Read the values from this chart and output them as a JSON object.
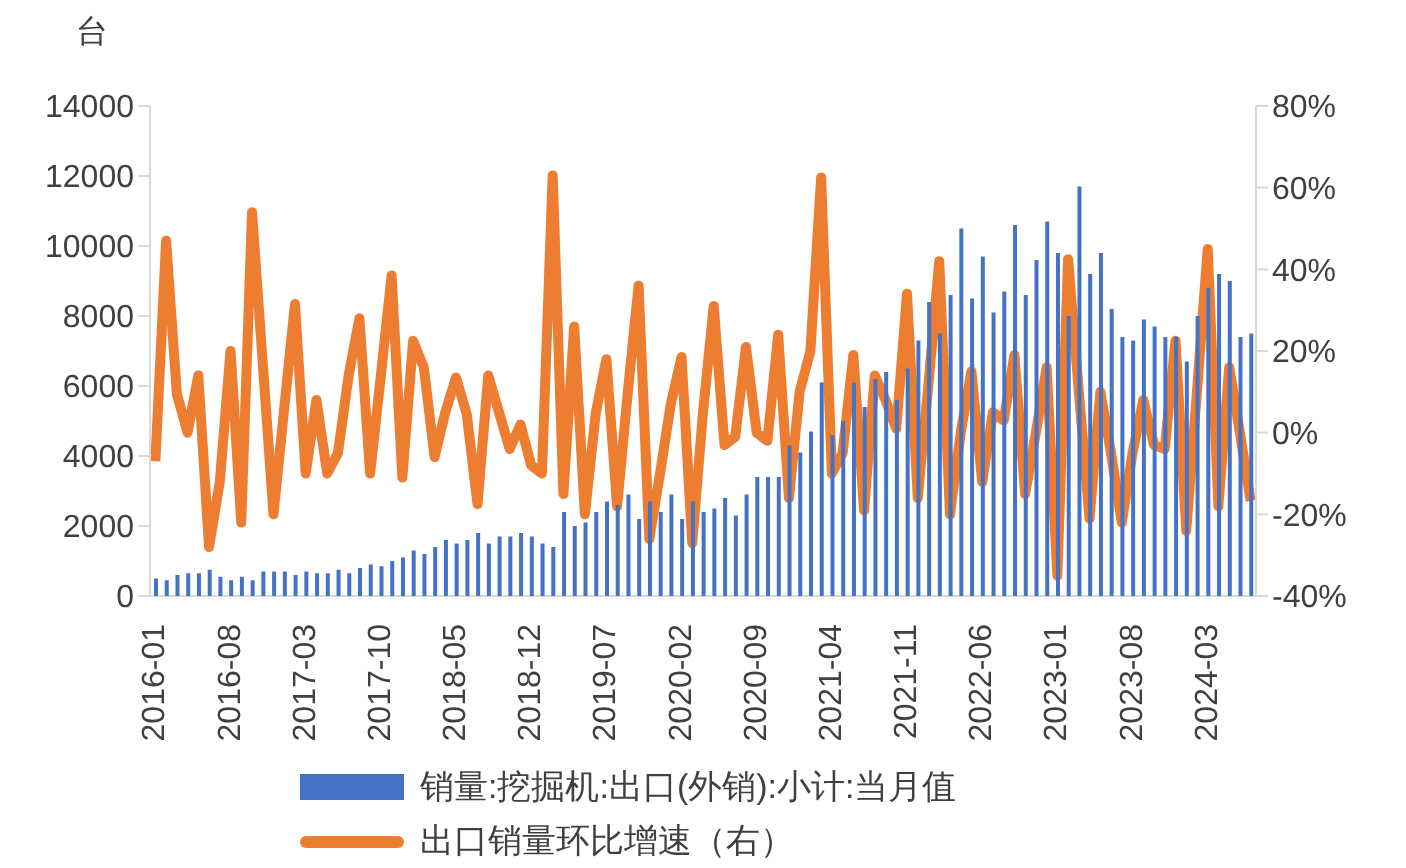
{
  "chart_data": {
    "type": "bar",
    "ylabel": "台",
    "legend": "bottom",
    "grid": false,
    "categories": [
      "2016-01",
      null,
      null,
      null,
      null,
      null,
      null,
      "2016-08",
      null,
      null,
      null,
      null,
      null,
      null,
      "2017-03",
      null,
      null,
      null,
      null,
      null,
      null,
      "2017-10",
      null,
      null,
      null,
      null,
      null,
      null,
      "2018-05",
      null,
      null,
      null,
      null,
      null,
      null,
      "2018-12",
      null,
      null,
      null,
      null,
      null,
      null,
      "2019-07",
      null,
      null,
      null,
      null,
      null,
      null,
      "2020-02",
      null,
      null,
      null,
      null,
      null,
      null,
      "2020-09",
      null,
      null,
      null,
      null,
      null,
      null,
      "2021-04",
      null,
      null,
      null,
      null,
      null,
      null,
      "2021-11",
      null,
      null,
      null,
      null,
      null,
      null,
      "2022-06",
      null,
      null,
      null,
      null,
      null,
      null,
      "2023-01",
      null,
      null,
      null,
      null,
      null,
      null,
      "2023-08",
      null,
      null,
      null,
      null,
      null,
      null,
      "2024-03",
      null,
      null,
      null,
      null
    ],
    "ylim": [
      0,
      14000
    ],
    "yticks": [
      0,
      2000,
      4000,
      6000,
      8000,
      10000,
      12000,
      14000
    ],
    "y2lim": [
      -40,
      80
    ],
    "y2ticks": [
      {
        "value": -40,
        "label": "-40%"
      },
      {
        "value": -20,
        "label": "-20%"
      },
      {
        "value": 0,
        "label": "0%"
      },
      {
        "value": 20,
        "label": "20%"
      },
      {
        "value": 40,
        "label": "40%"
      },
      {
        "value": 60,
        "label": "60%"
      },
      {
        "value": 80,
        "label": "80%"
      }
    ],
    "series": [
      {
        "name": "销量:挖掘机:出口(外销):小计:当月值",
        "color": "#4472c4",
        "values": [
          500,
          450,
          600,
          650,
          650,
          750,
          550,
          450,
          550,
          450,
          700,
          700,
          700,
          600,
          700,
          650,
          650,
          750,
          650,
          800,
          900,
          850,
          1000,
          1100,
          1300,
          1200,
          1400,
          1600,
          1500,
          1600,
          1800,
          1500,
          1700,
          1700,
          1800,
          1700,
          1500,
          1400,
          2400,
          2000,
          2100,
          2400,
          2700,
          2600,
          2900,
          2200,
          2700,
          2400,
          2900,
          2200,
          2700,
          2400,
          2500,
          2800,
          2300,
          2900,
          3400,
          3400,
          3400,
          4300,
          4100,
          4700,
          6100,
          4600,
          5000,
          6100,
          5400,
          6200,
          6400,
          5600,
          6500,
          7300,
          8400,
          7500,
          8600,
          10500,
          8500,
          9700,
          8100,
          8700,
          10600,
          8600,
          9600,
          10700,
          9800,
          8000,
          11700,
          9200,
          9800,
          8200,
          7400,
          7300,
          7900,
          7700,
          7400,
          7400,
          6700,
          8000,
          8800,
          9200,
          9000,
          7400,
          7500
        ]
      },
      {
        "name": "出口销量环比增速（右）",
        "type": "line",
        "axis": "y2",
        "color": "#ed7d31",
        "values": [
          -7,
          47,
          9.5,
          0,
          14,
          -28,
          -12,
          20,
          -22,
          54,
          17,
          -20,
          6,
          31.5,
          -10,
          8,
          -10,
          -5,
          14,
          28,
          -10,
          14,
          38.5,
          -11,
          22.5,
          16,
          -6,
          5,
          13.5,
          4.5,
          -17.5,
          14,
          5,
          -4,
          2,
          -8,
          -10,
          63,
          -15,
          26,
          -20,
          4.5,
          18,
          -18,
          10,
          36,
          -26,
          -10,
          7,
          18.5,
          -27,
          5,
          31,
          -3,
          -1,
          21,
          0,
          -2,
          24,
          -16,
          10,
          20,
          62.5,
          -10,
          -5,
          19,
          -19,
          14,
          8,
          1,
          34,
          -16,
          12,
          42,
          -20,
          0,
          15,
          -12,
          5,
          3,
          19,
          -15,
          0,
          16,
          -35,
          42.5,
          10,
          -21,
          10,
          -5,
          -22,
          -5,
          8,
          -3,
          -4,
          22.5,
          -24,
          10,
          45,
          -18,
          16,
          0,
          -16.7
        ]
      }
    ]
  }
}
